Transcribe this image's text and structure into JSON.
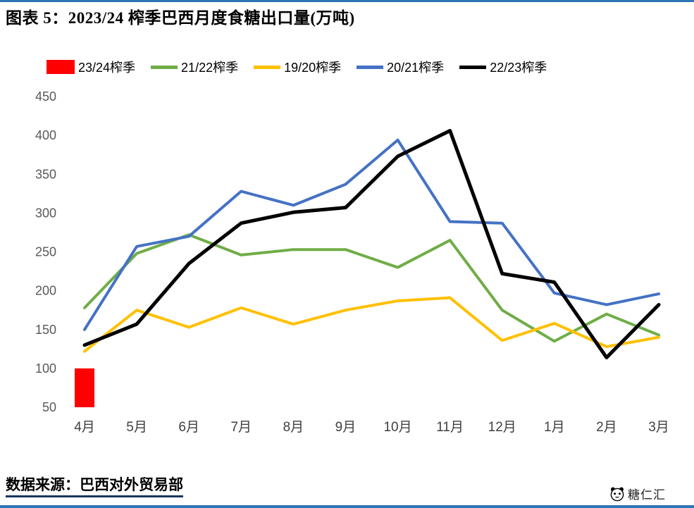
{
  "page": {
    "title": "图表 5：2023/24 榨季巴西月度食糖出口量(万吨)",
    "source_label": "数据来源：巴西对外贸易部",
    "watermark": "糖仁汇",
    "colors": {
      "border_rule": "#2E75B6",
      "source_underline": "#17375E",
      "y_tick_text": "#595959",
      "x_label_text": "#3f3f3f"
    }
  },
  "chart_data": {
    "type": "line",
    "title": "图表 5：2023/24 榨季巴西月度食糖出口量(万吨)",
    "xlabel": "",
    "ylabel": "",
    "grid": false,
    "legend_position": "top",
    "ylim": [
      50,
      450
    ],
    "yticks": [
      50,
      100,
      150,
      200,
      250,
      300,
      350,
      400,
      450
    ],
    "categories": [
      "4月",
      "5月",
      "6月",
      "7月",
      "8月",
      "9月",
      "10月",
      "11月",
      "12月",
      "1月",
      "2月",
      "3月"
    ],
    "series": [
      {
        "name": "23/24榨季",
        "type": "bar",
        "color": "#FF0000",
        "values": [
          100,
          null,
          null,
          null,
          null,
          null,
          null,
          null,
          null,
          null,
          null,
          null
        ]
      },
      {
        "name": "21/22榨季",
        "type": "line",
        "color": "#70AD47",
        "values": [
          178,
          248,
          272,
          246,
          253,
          253,
          230,
          265,
          175,
          135,
          170,
          143
        ]
      },
      {
        "name": "19/20榨季",
        "type": "line",
        "color": "#FFC000",
        "values": [
          122,
          175,
          153,
          178,
          157,
          175,
          187,
          191,
          136,
          158,
          128,
          140
        ]
      },
      {
        "name": "20/21榨季",
        "type": "line",
        "color": "#4472C4",
        "values": [
          150,
          257,
          270,
          328,
          310,
          337,
          394,
          289,
          287,
          197,
          182,
          196
        ]
      },
      {
        "name": "22/23榨季",
        "type": "line",
        "color": "#000000",
        "values": [
          130,
          157,
          235,
          287,
          301,
          307,
          373,
          406,
          222,
          211,
          114,
          182
        ]
      }
    ]
  }
}
